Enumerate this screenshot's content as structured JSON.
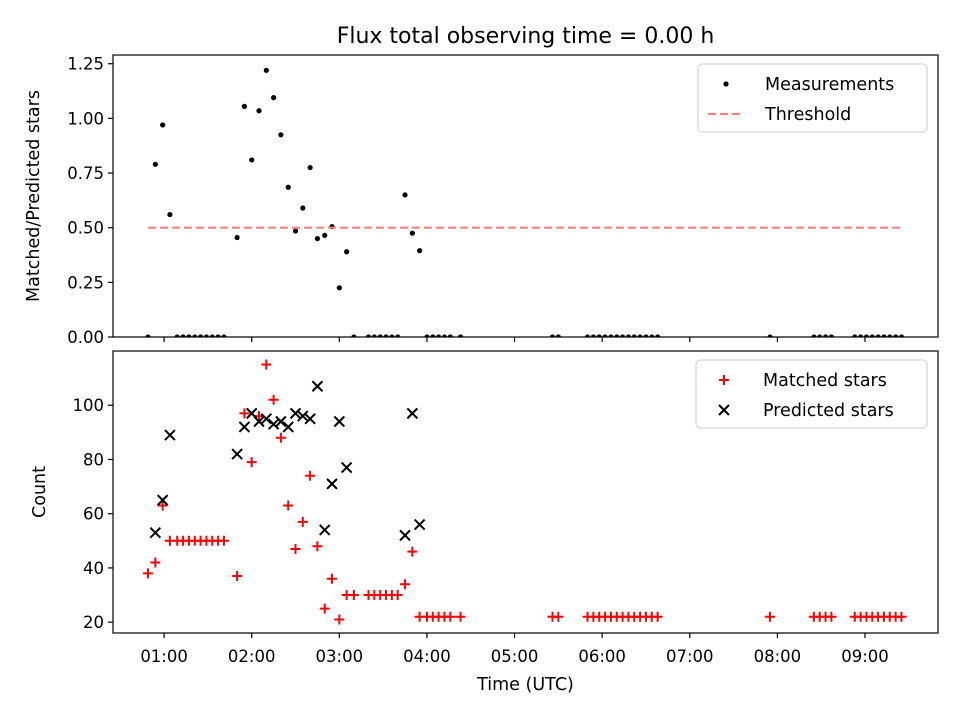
{
  "chart_data": [
    {
      "type": "scatter",
      "title": "Flux total observing time = 0.00 h",
      "xlabel": "",
      "ylabel": "Matched/Predicted stars",
      "xlim": [
        "00:25",
        "09:50"
      ],
      "ylim": [
        0,
        1.29
      ],
      "grid": false,
      "legend_position": "top-right",
      "yticks": [
        0,
        0.25,
        0.5,
        0.75,
        1.0,
        1.25
      ],
      "ytick_labels": [
        "0.00",
        "0.25",
        "0.50",
        "0.75",
        "1.00",
        "1.25"
      ],
      "xticks": [
        "01:00",
        "02:00",
        "03:00",
        "04:00",
        "05:00",
        "06:00",
        "07:00",
        "08:00",
        "09:00"
      ],
      "series": [
        {
          "name": "Measurements",
          "color": "#000000",
          "marker": "dot",
          "points": [
            [
              "00:49",
              0.0
            ],
            [
              "00:54",
              0.79
            ],
            [
              "00:59",
              0.97
            ],
            [
              "01:04",
              0.56
            ],
            [
              "01:09",
              0.0
            ],
            [
              "01:13",
              0.0
            ],
            [
              "01:17",
              0.0
            ],
            [
              "01:21",
              0.0
            ],
            [
              "01:25",
              0.0
            ],
            [
              "01:29",
              0.0
            ],
            [
              "01:33",
              0.0
            ],
            [
              "01:37",
              0.0
            ],
            [
              "01:41",
              0.0
            ],
            [
              "01:50",
              0.455
            ],
            [
              "01:55",
              1.055
            ],
            [
              "02:00",
              0.81
            ],
            [
              "02:05",
              1.035
            ],
            [
              "02:10",
              1.22
            ],
            [
              "02:15",
              1.095
            ],
            [
              "02:20",
              0.925
            ],
            [
              "02:25",
              0.685
            ],
            [
              "02:30",
              0.485
            ],
            [
              "02:35",
              0.59
            ],
            [
              "02:40",
              0.775
            ],
            [
              "02:45",
              0.45
            ],
            [
              "02:50",
              0.465
            ],
            [
              "02:55",
              0.505
            ],
            [
              "03:00",
              0.225
            ],
            [
              "03:05",
              0.39
            ],
            [
              "03:10",
              0.0
            ],
            [
              "03:20",
              0.0
            ],
            [
              "03:24",
              0.0
            ],
            [
              "03:28",
              0.0
            ],
            [
              "03:32",
              0.0
            ],
            [
              "03:36",
              0.0
            ],
            [
              "03:40",
              0.0
            ],
            [
              "03:45",
              0.65
            ],
            [
              "03:50",
              0.475
            ],
            [
              "03:55",
              0.395
            ],
            [
              "04:00",
              0.0
            ],
            [
              "04:04",
              0.0
            ],
            [
              "04:08",
              0.0
            ],
            [
              "04:12",
              0.0
            ],
            [
              "04:16",
              0.0
            ],
            [
              "04:23",
              0.0
            ],
            [
              "05:26",
              0.0
            ],
            [
              "05:30",
              0.0
            ],
            [
              "05:50",
              0.0
            ],
            [
              "05:54",
              0.0
            ],
            [
              "05:58",
              0.0
            ],
            [
              "06:02",
              0.0
            ],
            [
              "06:06",
              0.0
            ],
            [
              "06:10",
              0.0
            ],
            [
              "06:14",
              0.0
            ],
            [
              "06:18",
              0.0
            ],
            [
              "06:22",
              0.0
            ],
            [
              "06:26",
              0.0
            ],
            [
              "06:30",
              0.0
            ],
            [
              "06:34",
              0.0
            ],
            [
              "06:38",
              0.0
            ],
            [
              "07:55",
              0.0
            ],
            [
              "08:25",
              0.0
            ],
            [
              "08:29",
              0.0
            ],
            [
              "08:33",
              0.0
            ],
            [
              "08:37",
              0.0
            ],
            [
              "08:53",
              0.0
            ],
            [
              "08:57",
              0.0
            ],
            [
              "09:01",
              0.0
            ],
            [
              "09:05",
              0.0
            ],
            [
              "09:09",
              0.0
            ],
            [
              "09:13",
              0.0
            ],
            [
              "09:17",
              0.0
            ],
            [
              "09:21",
              0.0
            ],
            [
              "09:25",
              0.0
            ]
          ]
        },
        {
          "name": "Threshold",
          "color": "#ff7f7f",
          "style": "dashed-line",
          "points": [
            [
              "00:49",
              0.5
            ],
            [
              "09:25",
              0.5
            ]
          ]
        }
      ]
    },
    {
      "type": "scatter",
      "title": "",
      "xlabel": "Time (UTC)",
      "ylabel": "Count",
      "xlim": [
        "00:25",
        "09:50"
      ],
      "ylim": [
        16,
        120
      ],
      "grid": false,
      "legend_position": "top-right",
      "yticks": [
        20,
        40,
        60,
        80,
        100
      ],
      "ytick_labels": [
        "20",
        "40",
        "60",
        "80",
        "100"
      ],
      "xticks": [
        "01:00",
        "02:00",
        "03:00",
        "04:00",
        "05:00",
        "06:00",
        "07:00",
        "08:00",
        "09:00"
      ],
      "series": [
        {
          "name": "Matched stars",
          "color": "#ff0000",
          "marker": "plus",
          "points": [
            [
              "00:49",
              38
            ],
            [
              "00:54",
              42
            ],
            [
              "00:59",
              63
            ],
            [
              "01:04",
              50
            ],
            [
              "01:09",
              50
            ],
            [
              "01:13",
              50
            ],
            [
              "01:17",
              50
            ],
            [
              "01:21",
              50
            ],
            [
              "01:25",
              50
            ],
            [
              "01:29",
              50
            ],
            [
              "01:33",
              50
            ],
            [
              "01:37",
              50
            ],
            [
              "01:41",
              50
            ],
            [
              "01:50",
              37
            ],
            [
              "01:55",
              97
            ],
            [
              "02:00",
              79
            ],
            [
              "02:05",
              96
            ],
            [
              "02:10",
              115
            ],
            [
              "02:15",
              102
            ],
            [
              "02:20",
              88
            ],
            [
              "02:25",
              63
            ],
            [
              "02:30",
              47
            ],
            [
              "02:35",
              57
            ],
            [
              "02:40",
              74
            ],
            [
              "02:45",
              48
            ],
            [
              "02:50",
              25
            ],
            [
              "02:55",
              36
            ],
            [
              "03:00",
              21
            ],
            [
              "03:05",
              30
            ],
            [
              "03:10",
              30
            ],
            [
              "03:20",
              30
            ],
            [
              "03:24",
              30
            ],
            [
              "03:28",
              30
            ],
            [
              "03:32",
              30
            ],
            [
              "03:36",
              30
            ],
            [
              "03:40",
              30
            ],
            [
              "03:45",
              34
            ],
            [
              "03:50",
              46
            ],
            [
              "03:55",
              22
            ],
            [
              "04:00",
              22
            ],
            [
              "04:04",
              22
            ],
            [
              "04:08",
              22
            ],
            [
              "04:12",
              22
            ],
            [
              "04:16",
              22
            ],
            [
              "04:23",
              22
            ],
            [
              "05:26",
              22
            ],
            [
              "05:30",
              22
            ],
            [
              "05:50",
              22
            ],
            [
              "05:54",
              22
            ],
            [
              "05:58",
              22
            ],
            [
              "06:02",
              22
            ],
            [
              "06:06",
              22
            ],
            [
              "06:10",
              22
            ],
            [
              "06:14",
              22
            ],
            [
              "06:18",
              22
            ],
            [
              "06:22",
              22
            ],
            [
              "06:26",
              22
            ],
            [
              "06:30",
              22
            ],
            [
              "06:34",
              22
            ],
            [
              "06:38",
              22
            ],
            [
              "07:55",
              22
            ],
            [
              "08:25",
              22
            ],
            [
              "08:29",
              22
            ],
            [
              "08:33",
              22
            ],
            [
              "08:37",
              22
            ],
            [
              "08:53",
              22
            ],
            [
              "08:57",
              22
            ],
            [
              "09:01",
              22
            ],
            [
              "09:05",
              22
            ],
            [
              "09:09",
              22
            ],
            [
              "09:13",
              22
            ],
            [
              "09:17",
              22
            ],
            [
              "09:21",
              22
            ],
            [
              "09:25",
              22
            ]
          ]
        },
        {
          "name": "Predicted stars",
          "color": "#000000",
          "marker": "x",
          "points": [
            [
              "00:54",
              53
            ],
            [
              "00:59",
              65
            ],
            [
              "01:04",
              89
            ],
            [
              "01:50",
              82
            ],
            [
              "01:55",
              92
            ],
            [
              "02:00",
              97
            ],
            [
              "02:05",
              94
            ],
            [
              "02:10",
              95
            ],
            [
              "02:15",
              93
            ],
            [
              "02:20",
              94
            ],
            [
              "02:25",
              92
            ],
            [
              "02:30",
              97
            ],
            [
              "02:35",
              96
            ],
            [
              "02:40",
              95
            ],
            [
              "02:45",
              107
            ],
            [
              "02:50",
              54
            ],
            [
              "02:55",
              71
            ],
            [
              "03:00",
              94
            ],
            [
              "03:05",
              77
            ],
            [
              "03:45",
              52
            ],
            [
              "03:50",
              97
            ],
            [
              "03:55",
              56
            ]
          ]
        }
      ]
    }
  ]
}
